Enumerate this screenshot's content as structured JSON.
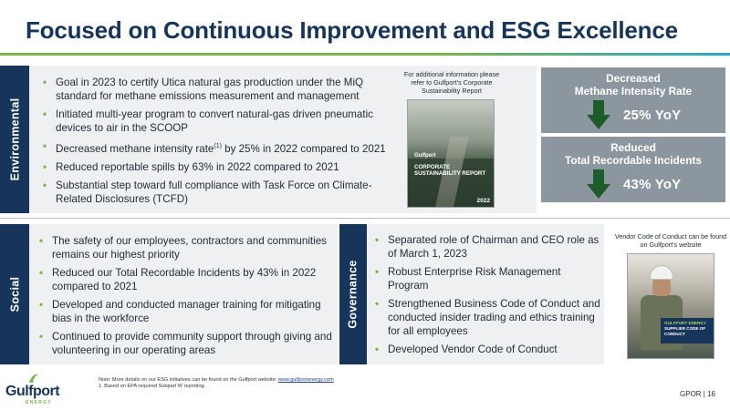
{
  "title": "Focused on Continuous Improvement and ESG Excellence",
  "colors": {
    "navy": "#17345a",
    "green": "#7ab648",
    "teal": "#2aa7c9",
    "kpi_gray": "#8c969f",
    "band_gray": "#eef0f2",
    "arrow_green": "#1e5b2a"
  },
  "environmental": {
    "tab": "Environmental",
    "bullets": [
      "Goal in 2023 to certify Utica natural gas production under the MiQ standard for methane emissions measurement and management",
      "Initiated multi-year program to convert natural-gas driven pneumatic devices to air in the SCOOP",
      "Substantial step toward full compliance with Task Force on Climate-Related Disclosures (TCFD)",
      "Reduced reportable spills by 63% in 2022 compared to 2021"
    ],
    "methane_bullet": {
      "pre": "Decreased methane intensity rate",
      "sup": "(1)",
      "post": " by 25% in 2022 compared to 2021"
    }
  },
  "report": {
    "note": "For additional information please refer to Gulfport's Corporate Sustainability Report",
    "cover_logo": "Gulfport",
    "cover_title": "CORPORATE SUSTAINABILITY REPORT",
    "cover_year": "2022"
  },
  "kpis": [
    {
      "line1": "Decreased",
      "line2": "Methane Intensity Rate",
      "value": "25% YoY",
      "icon": "down-arrow-icon"
    },
    {
      "line1": "Reduced",
      "line2": "Total Recordable Incidents",
      "value": "43% YoY",
      "icon": "down-arrow-icon"
    }
  ],
  "social": {
    "tab": "Social",
    "bullets": [
      "The safety of our employees, contractors and communities remains our highest priority",
      "Reduced our Total Recordable Incidents by 43% in 2022 compared to 2021",
      "Developed and conducted manager training for mitigating bias in the workforce",
      "Continued to provide community support through giving and volunteering in our operating areas"
    ]
  },
  "governance": {
    "tab": "Governance",
    "bullets": [
      "Separated role of Chairman and CEO role as of March 1, 2023",
      "Robust Enterprise Risk Management Program",
      "Strengthened Business Code of Conduct and conducted insider trading and ethics training for all employees",
      "Developed Vendor Code of Conduct"
    ]
  },
  "vendor": {
    "note": "Vendor Code of Conduct can be found on Gulfport's website",
    "banner_line1": "GULFPORT ENERGY",
    "banner_line2": "SUPPLIER CODE OF CONDUCT"
  },
  "footer": {
    "logo_word": "Gulfport",
    "logo_sub": "ENERGY",
    "note_prefix": "Note: More details on our ESG initiatives can be found on the Gulfport website: ",
    "note_link": "www.gulfportenergy.com",
    "footnote1": "1. Based on EPA required Subpart W reporting.",
    "page": "GPOR | 16"
  }
}
